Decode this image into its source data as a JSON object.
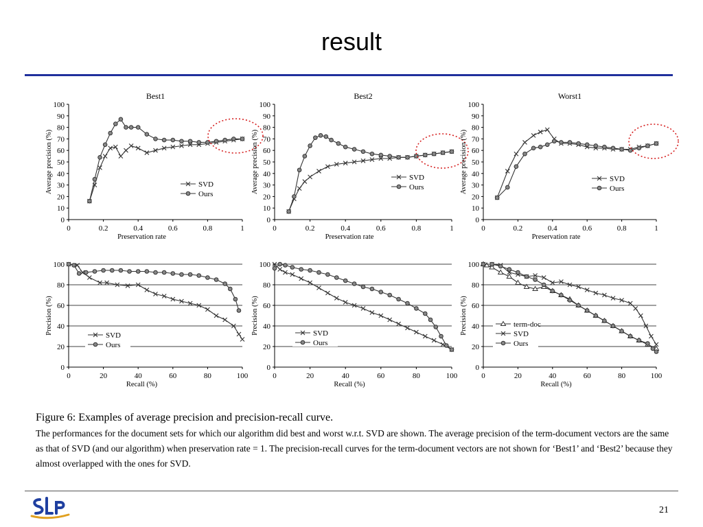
{
  "slide": {
    "title": "result",
    "page_number": "21",
    "logo_text": "SLP",
    "caption_heading": "Figure 6: Examples of average precision and precision-recall curve.",
    "caption_body": "The performances for the document sets for which our algorithm did best and worst w.r.t. SVD are shown. The average precision of the term-document vectors are the same as that of SVD (and our algorithm) when preservation rate = 1. The precision-recall curves for the term-document vectors are not shown for ‘Best1’ and ‘Best2’ because they almost overlapped with the ones for SVD.",
    "colors": {
      "title_rule": "#1f2f9c",
      "highlight_circle": "#d62020",
      "line": "#333333"
    }
  },
  "chart_data": [
    {
      "type": "line",
      "title": "Best1",
      "xlabel": "Preservation rate",
      "ylabel": "Average precision (%)",
      "xlim": [
        0,
        1
      ],
      "ylim": [
        0,
        100
      ],
      "x_ticks": [
        "0",
        "0.2",
        "0.4",
        "0.6",
        "0.8",
        "1"
      ],
      "y_ticks": [
        "0",
        "10",
        "20",
        "30",
        "40",
        "50",
        "60",
        "70",
        "80",
        "90",
        "100"
      ],
      "grid": false,
      "legend_position": "center-right",
      "highlight": "dotted red circle around x≈0.8–1",
      "series": [
        {
          "name": "SVD",
          "marker": "x",
          "x": [
            0.12,
            0.15,
            0.18,
            0.21,
            0.24,
            0.27,
            0.3,
            0.33,
            0.36,
            0.4,
            0.45,
            0.5,
            0.55,
            0.6,
            0.65,
            0.7,
            0.75,
            0.8,
            0.85,
            0.9,
            0.95,
            1.0
          ],
          "y": [
            16,
            30,
            45,
            55,
            62,
            63,
            55,
            60,
            64,
            62,
            58,
            60,
            62,
            63,
            64,
            65,
            65,
            66,
            67,
            68,
            69,
            70
          ]
        },
        {
          "name": "Ours",
          "marker": "o",
          "x": [
            0.12,
            0.15,
            0.18,
            0.21,
            0.24,
            0.27,
            0.3,
            0.33,
            0.36,
            0.4,
            0.45,
            0.5,
            0.55,
            0.6,
            0.65,
            0.7,
            0.75,
            0.8,
            0.85,
            0.9,
            0.95,
            1.0
          ],
          "y": [
            16,
            35,
            54,
            65,
            75,
            83,
            87,
            80,
            80,
            80,
            74,
            70,
            69,
            69,
            68,
            68,
            67,
            67,
            68,
            69,
            70,
            70
          ]
        }
      ]
    },
    {
      "type": "line",
      "title": "Best2",
      "xlabel": "Preservation rate",
      "ylabel": "Average precision (%)",
      "xlim": [
        0,
        1
      ],
      "ylim": [
        0,
        100
      ],
      "x_ticks": [
        "0",
        "0.2",
        "0.4",
        "0.6",
        "0.8",
        "1"
      ],
      "y_ticks": [
        "0",
        "10",
        "20",
        "30",
        "40",
        "50",
        "60",
        "70",
        "80",
        "90",
        "100"
      ],
      "grid": false,
      "legend_position": "center-right",
      "highlight": "dotted red circle around x≈0.8–1",
      "series": [
        {
          "name": "SVD",
          "marker": "x",
          "x": [
            0.08,
            0.11,
            0.14,
            0.17,
            0.2,
            0.25,
            0.3,
            0.35,
            0.4,
            0.45,
            0.5,
            0.55,
            0.6,
            0.65,
            0.7,
            0.75,
            0.8,
            0.85,
            0.9,
            0.95,
            1.0
          ],
          "y": [
            7,
            18,
            27,
            33,
            37,
            42,
            46,
            48,
            49,
            50,
            51,
            52,
            53,
            53,
            54,
            54,
            55,
            56,
            57,
            58,
            59
          ]
        },
        {
          "name": "Ours",
          "marker": "o",
          "x": [
            0.08,
            0.11,
            0.14,
            0.17,
            0.2,
            0.23,
            0.26,
            0.29,
            0.32,
            0.36,
            0.4,
            0.45,
            0.5,
            0.55,
            0.6,
            0.65,
            0.7,
            0.75,
            0.8,
            0.85,
            0.9,
            0.95,
            1.0
          ],
          "y": [
            7,
            20,
            43,
            55,
            64,
            71,
            73,
            72,
            69,
            66,
            63,
            61,
            59,
            57,
            56,
            55,
            54,
            54,
            55,
            56,
            57,
            58,
            59
          ]
        }
      ]
    },
    {
      "type": "line",
      "title": "Worst1",
      "xlabel": "Preservation rate",
      "ylabel": "Average precision (%)",
      "xlim": [
        0,
        1
      ],
      "ylim": [
        0,
        100
      ],
      "x_ticks": [
        "0",
        "0.2",
        "0.4",
        "0.6",
        "0.8",
        "1"
      ],
      "y_ticks": [
        "0",
        "10",
        "20",
        "30",
        "40",
        "50",
        "60",
        "70",
        "80",
        "90",
        "100"
      ],
      "grid": false,
      "legend_position": "center-right",
      "highlight": "dotted red circle around x≈0.85–1",
      "series": [
        {
          "name": "SVD",
          "marker": "x",
          "x": [
            0.08,
            0.14,
            0.19,
            0.24,
            0.29,
            0.33,
            0.37,
            0.41,
            0.45,
            0.5,
            0.55,
            0.6,
            0.65,
            0.7,
            0.75,
            0.8,
            0.85,
            0.9,
            0.95,
            1.0
          ],
          "y": [
            19,
            42,
            57,
            67,
            73,
            76,
            78,
            70,
            66,
            66,
            65,
            63,
            62,
            62,
            61,
            61,
            61,
            63,
            64,
            66
          ]
        },
        {
          "name": "Ours",
          "marker": "o",
          "x": [
            0.08,
            0.14,
            0.19,
            0.24,
            0.29,
            0.33,
            0.37,
            0.41,
            0.45,
            0.5,
            0.55,
            0.6,
            0.65,
            0.7,
            0.75,
            0.8,
            0.85,
            0.9,
            0.95,
            1.0
          ],
          "y": [
            19,
            28,
            46,
            57,
            62,
            63,
            65,
            68,
            67,
            67,
            66,
            65,
            64,
            63,
            62,
            61,
            60,
            62,
            64,
            66
          ]
        }
      ]
    },
    {
      "type": "line",
      "xlabel": "Recall (%)",
      "ylabel": "Precision (%)",
      "xlim": [
        0,
        100
      ],
      "ylim": [
        0,
        100
      ],
      "x_ticks": [
        "0",
        "20",
        "40",
        "60",
        "80",
        "100"
      ],
      "y_ticks": [
        "0",
        "20",
        "40",
        "60",
        "80",
        "100"
      ],
      "grid": true,
      "legend_position": "bottom-left",
      "series": [
        {
          "name": "SVD",
          "marker": "x",
          "x": [
            0,
            5,
            8,
            12,
            18,
            22,
            28,
            34,
            40,
            45,
            50,
            55,
            60,
            65,
            70,
            75,
            80,
            85,
            90,
            95,
            98,
            100
          ],
          "y": [
            100,
            99,
            92,
            87,
            82,
            82,
            80,
            79,
            80,
            75,
            71,
            69,
            66,
            64,
            62,
            60,
            56,
            50,
            46,
            40,
            32,
            27
          ]
        },
        {
          "name": "Ours",
          "marker": "o",
          "x": [
            0,
            3,
            6,
            10,
            15,
            20,
            25,
            30,
            35,
            40,
            45,
            50,
            55,
            60,
            65,
            70,
            75,
            80,
            85,
            90,
            93,
            96,
            98
          ],
          "y": [
            100,
            99,
            91,
            92,
            93,
            94,
            94,
            94,
            93,
            93,
            93,
            92,
            92,
            91,
            90,
            90,
            89,
            87,
            85,
            81,
            76,
            66,
            55
          ]
        }
      ]
    },
    {
      "type": "line",
      "xlabel": "Recall (%)",
      "ylabel": "Precision (%)",
      "xlim": [
        0,
        100
      ],
      "ylim": [
        0,
        100
      ],
      "x_ticks": [
        "0",
        "20",
        "40",
        "60",
        "80",
        "100"
      ],
      "y_ticks": [
        "0",
        "20",
        "40",
        "60",
        "80",
        "100"
      ],
      "grid": true,
      "legend_position": "bottom-left",
      "series": [
        {
          "name": "SVD",
          "marker": "x",
          "x": [
            0,
            3,
            6,
            10,
            15,
            20,
            25,
            30,
            35,
            40,
            45,
            50,
            55,
            60,
            65,
            70,
            75,
            80,
            85,
            90,
            95,
            100
          ],
          "y": [
            100,
            95,
            92,
            90,
            86,
            82,
            77,
            72,
            67,
            63,
            60,
            57,
            53,
            50,
            46,
            42,
            38,
            34,
            30,
            26,
            22,
            17
          ]
        },
        {
          "name": "Ours",
          "marker": "o",
          "x": [
            0,
            3,
            6,
            10,
            15,
            20,
            25,
            30,
            35,
            40,
            45,
            50,
            55,
            60,
            65,
            70,
            75,
            80,
            85,
            88,
            91,
            94,
            97,
            100
          ],
          "y": [
            96,
            100,
            99,
            97,
            95,
            94,
            92,
            90,
            87,
            84,
            81,
            78,
            76,
            73,
            70,
            66,
            62,
            57,
            52,
            46,
            39,
            30,
            21,
            17
          ]
        }
      ]
    },
    {
      "type": "line",
      "xlabel": "Recall (%)",
      "ylabel": "Precision (%)",
      "xlim": [
        0,
        100
      ],
      "ylim": [
        0,
        100
      ],
      "x_ticks": [
        "0",
        "20",
        "40",
        "60",
        "80",
        "100"
      ],
      "y_ticks": [
        "0",
        "20",
        "40",
        "60",
        "80",
        "100"
      ],
      "grid": true,
      "legend_position": "bottom-left",
      "series": [
        {
          "name": "term-doc",
          "marker": "triangle",
          "x": [
            0,
            2,
            5,
            10,
            15,
            20,
            25,
            30,
            35,
            40,
            45,
            50,
            55,
            60,
            65,
            70,
            75,
            80,
            85,
            90,
            95,
            100
          ],
          "y": [
            100,
            99,
            97,
            92,
            88,
            82,
            78,
            76,
            78,
            74,
            70,
            66,
            60,
            55,
            50,
            45,
            40,
            35,
            30,
            26,
            22,
            18
          ]
        },
        {
          "name": "SVD",
          "marker": "x",
          "x": [
            0,
            5,
            10,
            15,
            20,
            25,
            30,
            35,
            40,
            45,
            50,
            55,
            60,
            65,
            70,
            75,
            80,
            85,
            88,
            91,
            94,
            97,
            100
          ],
          "y": [
            100,
            100,
            99,
            92,
            90,
            88,
            89,
            87,
            82,
            83,
            80,
            78,
            75,
            72,
            70,
            67,
            65,
            62,
            57,
            50,
            40,
            30,
            22
          ]
        },
        {
          "name": "Ours",
          "marker": "o",
          "x": [
            0,
            5,
            10,
            15,
            20,
            25,
            30,
            35,
            40,
            45,
            50,
            55,
            60,
            65,
            70,
            75,
            80,
            85,
            90,
            95,
            98,
            100
          ],
          "y": [
            100,
            100,
            98,
            95,
            92,
            88,
            85,
            80,
            74,
            70,
            65,
            60,
            55,
            50,
            45,
            40,
            35,
            30,
            26,
            23,
            18,
            15
          ]
        }
      ]
    }
  ]
}
